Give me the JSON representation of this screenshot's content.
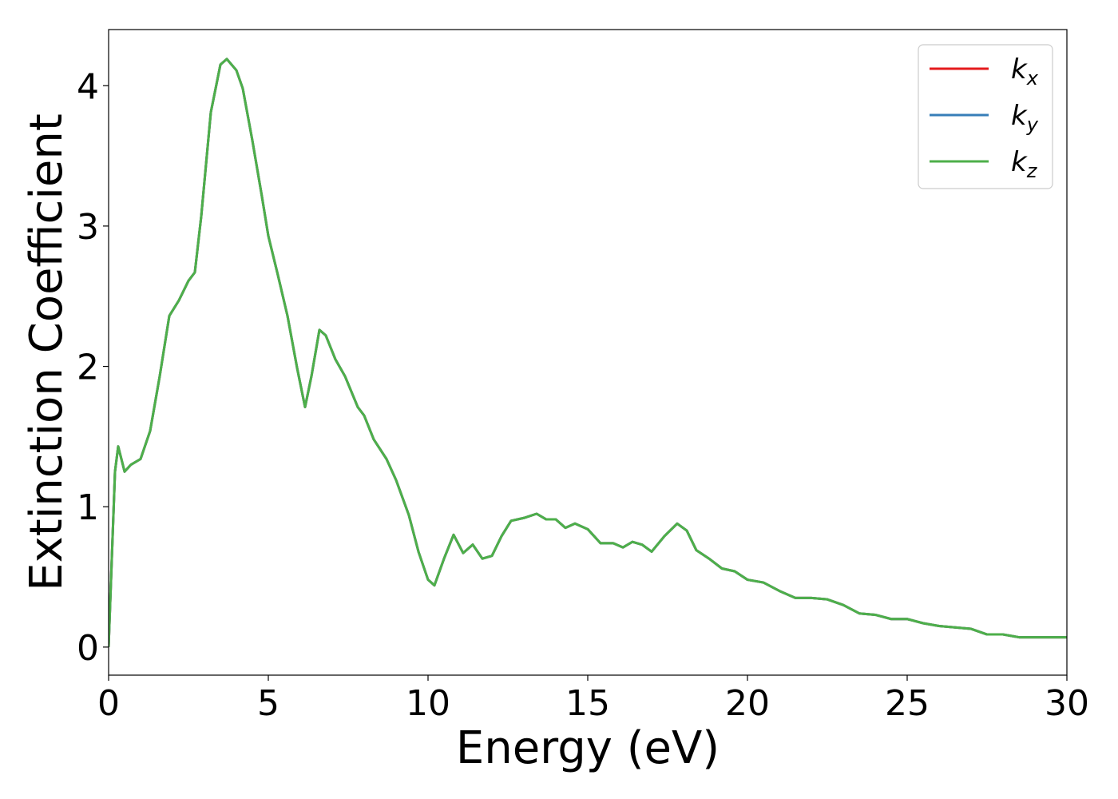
{
  "chart_data": {
    "type": "line",
    "xlabel": "Energy (eV)",
    "ylabel": "Extinction Coefficient",
    "xlim": [
      0,
      30
    ],
    "xticks": [
      0,
      5,
      10,
      15,
      20,
      25,
      30
    ],
    "ylim": [
      -0.2,
      4.4
    ],
    "yticks": [
      0,
      1,
      2,
      3,
      4
    ],
    "legend": "upper right",
    "x": [
      0,
      0.1,
      0.2,
      0.3,
      0.5,
      0.7,
      1.0,
      1.3,
      1.6,
      1.9,
      2.2,
      2.5,
      2.7,
      2.9,
      3.2,
      3.5,
      3.7,
      4.0,
      4.2,
      4.5,
      4.8,
      5.0,
      5.3,
      5.6,
      5.9,
      6.15,
      6.35,
      6.6,
      6.8,
      7.1,
      7.4,
      7.8,
      8.0,
      8.3,
      8.7,
      9.0,
      9.4,
      9.7,
      10.0,
      10.2,
      10.5,
      10.8,
      11.1,
      11.4,
      11.7,
      12.0,
      12.3,
      12.6,
      13.0,
      13.4,
      13.7,
      14.0,
      14.3,
      14.6,
      15.0,
      15.4,
      15.8,
      16.1,
      16.4,
      16.7,
      17.0,
      17.4,
      17.8,
      18.1,
      18.4,
      18.8,
      19.2,
      19.6,
      20.0,
      20.5,
      21.0,
      21.5,
      22.0,
      22.5,
      23.0,
      23.5,
      24.0,
      24.5,
      25.0,
      25.5,
      26.0,
      26.5,
      27.0,
      27.5,
      28.0,
      28.5,
      29.0,
      30.0
    ],
    "series": [
      {
        "name": "k_x",
        "color": "#e41a1c",
        "values": [
          0,
          0.63,
          1.25,
          1.43,
          1.25,
          1.3,
          1.34,
          1.54,
          1.93,
          2.36,
          2.47,
          2.61,
          2.67,
          3.07,
          3.81,
          4.15,
          4.19,
          4.11,
          3.98,
          3.61,
          3.21,
          2.93,
          2.65,
          2.36,
          1.99,
          1.71,
          1.93,
          2.26,
          2.22,
          2.05,
          1.93,
          1.71,
          1.65,
          1.48,
          1.34,
          1.19,
          0.94,
          0.68,
          0.48,
          0.44,
          0.63,
          0.8,
          0.67,
          0.73,
          0.63,
          0.65,
          0.79,
          0.9,
          0.92,
          0.95,
          0.91,
          0.91,
          0.85,
          0.88,
          0.84,
          0.74,
          0.74,
          0.71,
          0.75,
          0.73,
          0.68,
          0.79,
          0.88,
          0.83,
          0.69,
          0.63,
          0.56,
          0.54,
          0.48,
          0.46,
          0.4,
          0.35,
          0.35,
          0.34,
          0.3,
          0.24,
          0.23,
          0.2,
          0.2,
          0.17,
          0.15,
          0.14,
          0.13,
          0.09,
          0.09,
          0.07,
          0.07,
          0.07
        ]
      },
      {
        "name": "k_y",
        "color": "#377eb8",
        "values": [
          0,
          0.63,
          1.25,
          1.43,
          1.25,
          1.3,
          1.34,
          1.54,
          1.93,
          2.36,
          2.47,
          2.61,
          2.67,
          3.07,
          3.81,
          4.15,
          4.19,
          4.11,
          3.98,
          3.61,
          3.21,
          2.93,
          2.65,
          2.36,
          1.99,
          1.71,
          1.93,
          2.26,
          2.22,
          2.05,
          1.93,
          1.71,
          1.65,
          1.48,
          1.34,
          1.19,
          0.94,
          0.68,
          0.48,
          0.44,
          0.63,
          0.8,
          0.67,
          0.73,
          0.63,
          0.65,
          0.79,
          0.9,
          0.92,
          0.95,
          0.91,
          0.91,
          0.85,
          0.88,
          0.84,
          0.74,
          0.74,
          0.71,
          0.75,
          0.73,
          0.68,
          0.79,
          0.88,
          0.83,
          0.69,
          0.63,
          0.56,
          0.54,
          0.48,
          0.46,
          0.4,
          0.35,
          0.35,
          0.34,
          0.3,
          0.24,
          0.23,
          0.2,
          0.2,
          0.17,
          0.15,
          0.14,
          0.13,
          0.09,
          0.09,
          0.07,
          0.07,
          0.07
        ]
      },
      {
        "name": "k_z",
        "color": "#4daf4a",
        "values": [
          0,
          0.63,
          1.25,
          1.43,
          1.25,
          1.3,
          1.34,
          1.54,
          1.93,
          2.36,
          2.47,
          2.61,
          2.67,
          3.07,
          3.81,
          4.15,
          4.19,
          4.11,
          3.98,
          3.61,
          3.21,
          2.93,
          2.65,
          2.36,
          1.99,
          1.71,
          1.93,
          2.26,
          2.22,
          2.05,
          1.93,
          1.71,
          1.65,
          1.48,
          1.34,
          1.19,
          0.94,
          0.68,
          0.48,
          0.44,
          0.63,
          0.8,
          0.67,
          0.73,
          0.63,
          0.65,
          0.79,
          0.9,
          0.92,
          0.95,
          0.91,
          0.91,
          0.85,
          0.88,
          0.84,
          0.74,
          0.74,
          0.71,
          0.75,
          0.73,
          0.68,
          0.79,
          0.88,
          0.83,
          0.69,
          0.63,
          0.56,
          0.54,
          0.48,
          0.46,
          0.4,
          0.35,
          0.35,
          0.34,
          0.3,
          0.24,
          0.23,
          0.2,
          0.2,
          0.17,
          0.15,
          0.14,
          0.13,
          0.09,
          0.09,
          0.07,
          0.07,
          0.07
        ]
      }
    ]
  }
}
